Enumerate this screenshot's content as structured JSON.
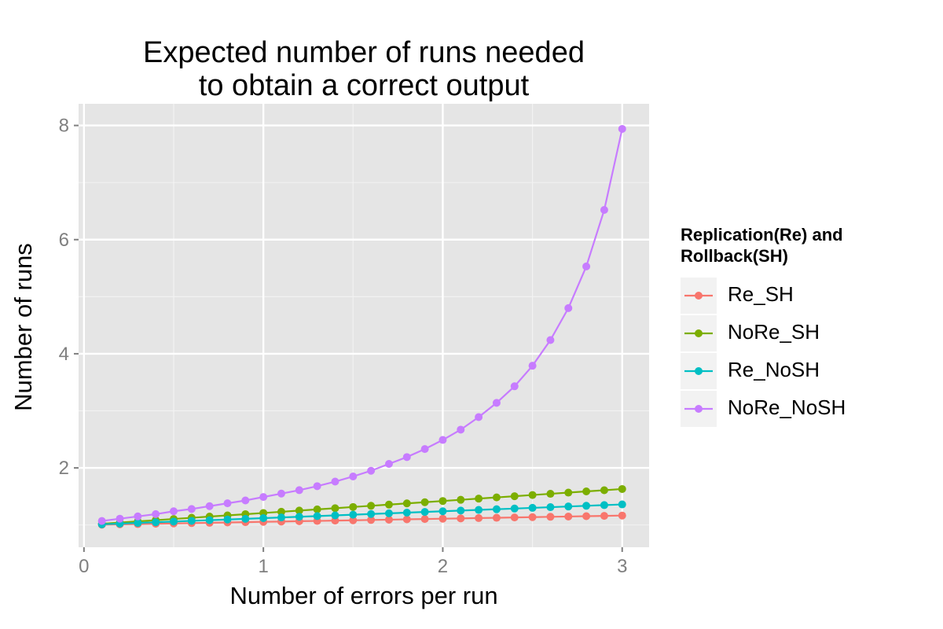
{
  "chart_data": {
    "type": "line",
    "title_line1": "Expected number of runs needed",
    "title_line2": "to obtain a correct output",
    "xlabel": "Number of errors per run",
    "ylabel": "Number of runs",
    "xlim": [
      -0.03,
      3.15
    ],
    "ylim": [
      0.61,
      8.38
    ],
    "x_ticks": [
      0,
      1,
      2,
      3
    ],
    "y_ticks": [
      2,
      4,
      6,
      8
    ],
    "grid": true,
    "legend_position": "right",
    "legend_title_line1": "Replication(Re) and",
    "legend_title_line2": "Rollback(SH)",
    "x": [
      0.1,
      0.2,
      0.3,
      0.4,
      0.5,
      0.6,
      0.7,
      0.8,
      0.9,
      1.0,
      1.1,
      1.2,
      1.3,
      1.4,
      1.5,
      1.6,
      1.7,
      1.8,
      1.9,
      2.0,
      2.1,
      2.2,
      2.3,
      2.4,
      2.5,
      2.6,
      2.7,
      2.8,
      2.9,
      3.0
    ],
    "series": [
      {
        "name": "Re_SH",
        "color": "#F8766D",
        "values": [
          1.005,
          1.011,
          1.016,
          1.022,
          1.027,
          1.033,
          1.038,
          1.044,
          1.049,
          1.055,
          1.06,
          1.066,
          1.071,
          1.077,
          1.082,
          1.088,
          1.093,
          1.099,
          1.104,
          1.11,
          1.115,
          1.121,
          1.126,
          1.132,
          1.137,
          1.143,
          1.148,
          1.154,
          1.159,
          1.165
        ]
      },
      {
        "name": "NoRe_SH",
        "color": "#7CAE00",
        "values": [
          1.021,
          1.042,
          1.063,
          1.084,
          1.105,
          1.126,
          1.147,
          1.168,
          1.189,
          1.21,
          1.231,
          1.252,
          1.273,
          1.294,
          1.315,
          1.336,
          1.357,
          1.378,
          1.399,
          1.42,
          1.441,
          1.462,
          1.483,
          1.504,
          1.525,
          1.546,
          1.567,
          1.588,
          1.609,
          1.63
        ]
      },
      {
        "name": "Re_NoSH",
        "color": "#00BFC4",
        "values": [
          1.012,
          1.024,
          1.036,
          1.048,
          1.06,
          1.072,
          1.084,
          1.096,
          1.108,
          1.12,
          1.132,
          1.144,
          1.156,
          1.168,
          1.18,
          1.192,
          1.204,
          1.216,
          1.228,
          1.24,
          1.252,
          1.264,
          1.276,
          1.288,
          1.3,
          1.312,
          1.324,
          1.336,
          1.348,
          1.36
        ]
      },
      {
        "name": "NoRe_NoSH",
        "color": "#C77CFF",
        "values": [
          1.07,
          1.11,
          1.15,
          1.19,
          1.24,
          1.28,
          1.33,
          1.38,
          1.43,
          1.49,
          1.55,
          1.61,
          1.68,
          1.76,
          1.85,
          1.95,
          2.07,
          2.19,
          2.33,
          2.49,
          2.67,
          2.89,
          3.14,
          3.43,
          3.79,
          4.24,
          4.8,
          5.53,
          6.52,
          7.94
        ]
      }
    ]
  }
}
